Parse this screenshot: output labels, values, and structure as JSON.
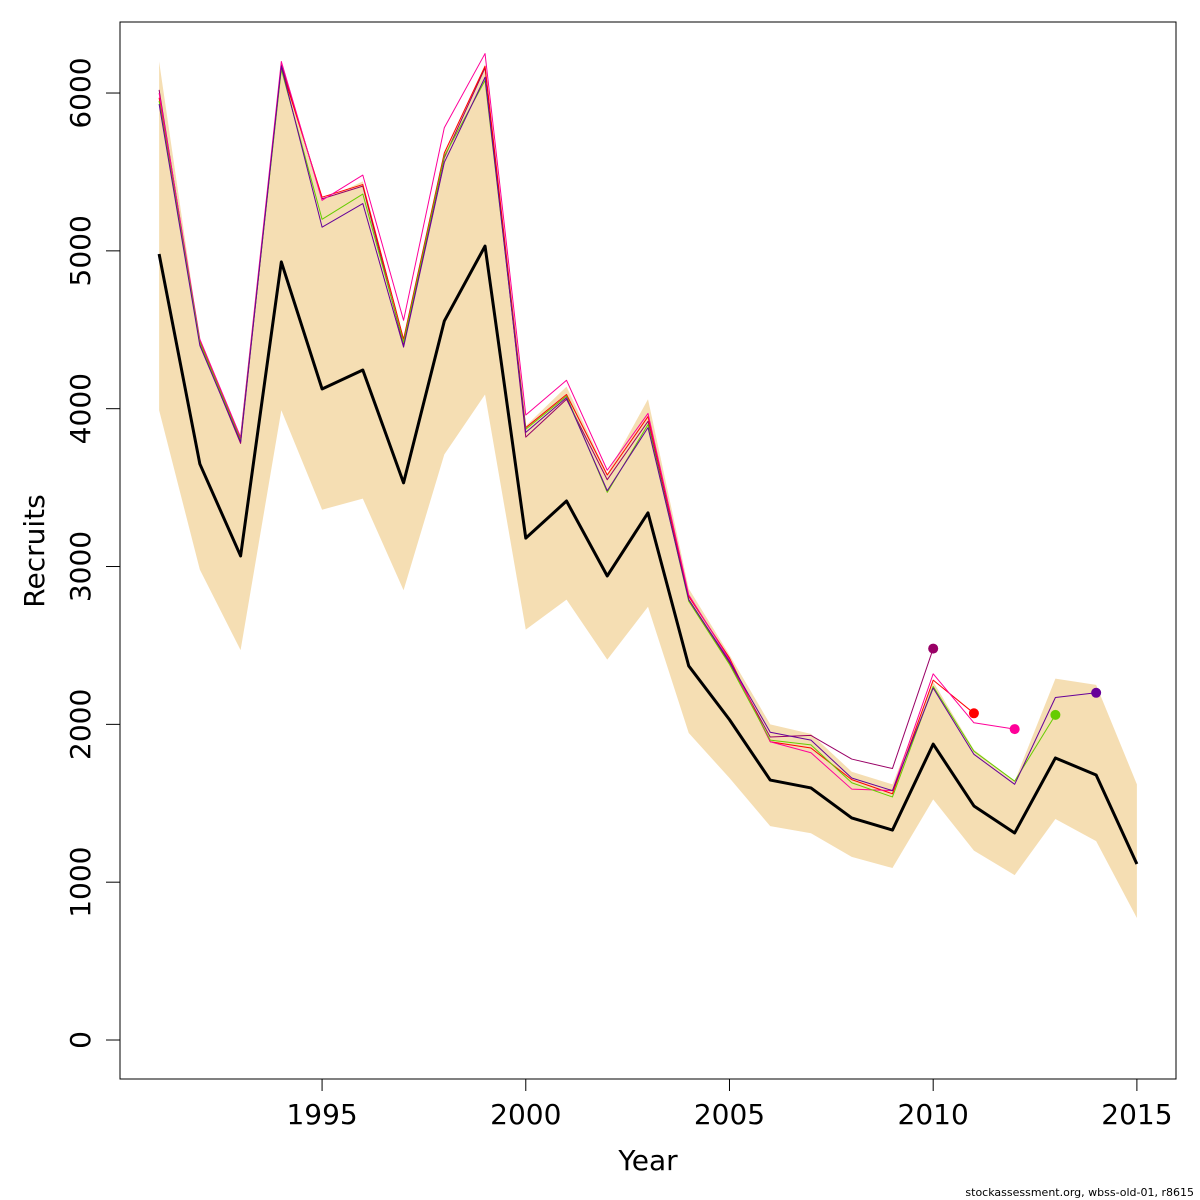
{
  "chart_data": {
    "type": "line",
    "x_label": "Year",
    "y_label": "Recruits",
    "footnote": "stockassessment.org, wbss-old-01, r8615",
    "x": [
      1991,
      1992,
      1993,
      1994,
      1995,
      1996,
      1997,
      1998,
      1999,
      2000,
      2001,
      2002,
      2003,
      2004,
      2005,
      2006,
      2007,
      2008,
      2009,
      2010,
      2011,
      2012,
      2013,
      2014,
      2015
    ],
    "band": {
      "color": "#f5deb3",
      "upper": [
        6200,
        4430,
        3820,
        6200,
        5320,
        5440,
        4450,
        5620,
        6180,
        3890,
        4140,
        3590,
        4060,
        2860,
        2440,
        2000,
        1940,
        1700,
        1620,
        2270,
        1840,
        1640,
        2290,
        2250,
        1620
      ],
      "lower": [
        3990,
        2980,
        2470,
        3990,
        3360,
        3430,
        2850,
        3710,
        4090,
        2600,
        2790,
        2410,
        2745,
        1945,
        1660,
        1355,
        1310,
        1160,
        1090,
        1525,
        1200,
        1045,
        1400,
        1260,
        773
      ]
    },
    "series": [
      {
        "color": "#000000",
        "width": 3,
        "end_marker": false,
        "values": [
          4980,
          3650,
          3067,
          4930,
          4125,
          4245,
          3530,
          4555,
          5030,
          3180,
          3415,
          2940,
          3340,
          2370,
          2030,
          1647,
          1597,
          1407,
          1330,
          1875,
          1483,
          1312,
          1787,
          1679,
          1115
        ]
      },
      {
        "color": "#660099",
        "width": 1,
        "end_marker": true,
        "values": [
          5930,
          4400,
          3790,
          6170,
          5150,
          5300,
          4390,
          5560,
          6100,
          3850,
          4070,
          3480,
          3880,
          2790,
          2400,
          1950,
          1900,
          1660,
          1580,
          2230,
          1810,
          1620,
          2170,
          2200,
          null
        ]
      },
      {
        "color": "#66cc00",
        "width": 1,
        "end_marker": true,
        "values": [
          5950,
          4420,
          3800,
          6150,
          5200,
          5360,
          4420,
          5600,
          6080,
          3870,
          4080,
          3470,
          3900,
          2780,
          2380,
          1900,
          1870,
          1630,
          1540,
          2240,
          1830,
          1640,
          2060,
          null,
          null
        ]
      },
      {
        "color": "#ff0099",
        "width": 1,
        "end_marker": true,
        "values": [
          6000,
          4440,
          3820,
          6200,
          5320,
          5480,
          4560,
          5780,
          6250,
          3960,
          4180,
          3610,
          3970,
          2820,
          2410,
          1890,
          1820,
          1590,
          1580,
          2320,
          2010,
          1970,
          null,
          null,
          null
        ]
      },
      {
        "color": "#ff0000",
        "width": 1,
        "end_marker": true,
        "values": [
          5970,
          4430,
          3810,
          6160,
          5340,
          5420,
          4440,
          5620,
          6170,
          3880,
          4090,
          3580,
          3950,
          2810,
          2420,
          1890,
          1850,
          1650,
          1560,
          2280,
          2070,
          null,
          null,
          null,
          null
        ]
      },
      {
        "color": "#990066",
        "width": 1,
        "end_marker": true,
        "values": [
          6020,
          4410,
          3780,
          6180,
          5330,
          5410,
          4400,
          5590,
          6160,
          3820,
          4060,
          3550,
          3920,
          2790,
          2390,
          1920,
          1930,
          1780,
          1720,
          2480,
          null,
          null,
          null,
          null,
          null
        ]
      }
    ],
    "xlim": [
      1990.04,
      2015.96
    ],
    "ylim": [
      -247,
      6450
    ],
    "xticks": [
      1995,
      2000,
      2005,
      2010,
      2015
    ],
    "yticks": [
      0,
      1000,
      2000,
      3000,
      4000,
      5000,
      6000
    ]
  }
}
